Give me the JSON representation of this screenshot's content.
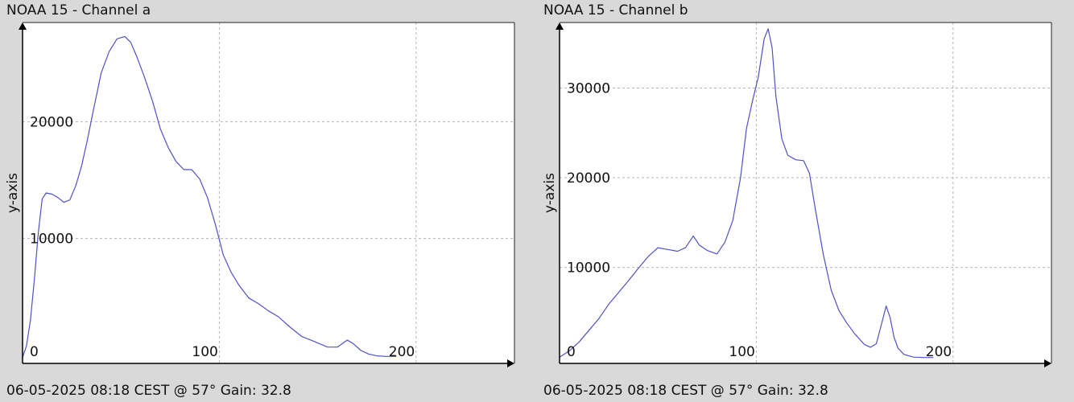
{
  "chart_data": [
    {
      "type": "line",
      "title": "NOAA 15 - Channel a",
      "footer": "06-05-2025 08:18 CEST @ 57° Gain: 32.8",
      "xlabel": "",
      "ylabel": "y-axis",
      "xlim": [
        0,
        250
      ],
      "ylim": [
        -700,
        28500
      ],
      "x_ticks": [
        0,
        100,
        200
      ],
      "x_tick_labels": [
        "0",
        "100",
        "200"
      ],
      "y_ticks": [
        10000,
        20000
      ],
      "y_tick_labels": [
        "10000",
        "20000"
      ],
      "grid": true,
      "color": "#5050c8",
      "series": [
        {
          "x": [
            0,
            2,
            4,
            6,
            8,
            10,
            12,
            15,
            18,
            21,
            24,
            27,
            30,
            33,
            36,
            40,
            44,
            48,
            52,
            55,
            58,
            62,
            66,
            70,
            74,
            78,
            82,
            86,
            90,
            94,
            98,
            102,
            106,
            110,
            115,
            120,
            125,
            130,
            136,
            142,
            148,
            155,
            160,
            165,
            168,
            172,
            176,
            180,
            185,
            190
          ],
          "y": [
            -200,
            800,
            3000,
            6500,
            10500,
            13400,
            13900,
            13800,
            13500,
            13100,
            13300,
            14500,
            16200,
            18500,
            21000,
            24200,
            26000,
            27100,
            27300,
            26800,
            25600,
            23800,
            21800,
            19400,
            17800,
            16600,
            15900,
            15900,
            15100,
            13500,
            11200,
            8600,
            7100,
            6000,
            4900,
            4400,
            3800,
            3300,
            2400,
            1600,
            1200,
            700,
            700,
            1300,
            1000,
            400,
            100,
            -50,
            -100,
            -100
          ]
        }
      ]
    },
    {
      "type": "line",
      "title": "NOAA 15 - Channel b",
      "footer": "06-05-2025 08:18 CEST @ 57° Gain: 32.8",
      "xlabel": "",
      "ylabel": "y-axis",
      "xlim": [
        0,
        250
      ],
      "ylim": [
        -700,
        37300
      ],
      "x_ticks": [
        0,
        100,
        200
      ],
      "x_tick_labels": [
        "0",
        "100",
        "200"
      ],
      "y_ticks": [
        10000,
        20000,
        30000
      ],
      "y_tick_labels": [
        "10000",
        "20000",
        "30000"
      ],
      "grid": true,
      "color": "#5050c8",
      "series": [
        {
          "x": [
            0,
            5,
            10,
            15,
            20,
            25,
            30,
            35,
            40,
            45,
            50,
            55,
            60,
            64,
            68,
            71,
            75,
            80,
            84,
            88,
            92,
            95,
            98,
            101,
            104,
            106,
            108,
            110,
            113,
            116,
            120,
            124,
            127,
            130,
            134,
            138,
            142,
            146,
            150,
            155,
            158,
            161,
            164,
            166,
            168,
            170,
            172,
            175,
            180,
            185,
            190
          ],
          "y": [
            0,
            700,
            1700,
            3000,
            4300,
            5900,
            7200,
            8500,
            9900,
            11200,
            12200,
            12000,
            11800,
            12200,
            13500,
            12500,
            11900,
            11500,
            12800,
            15200,
            20000,
            25500,
            28500,
            31200,
            35500,
            36600,
            34500,
            29000,
            24300,
            22500,
            22000,
            21900,
            20500,
            16500,
            11500,
            7500,
            5200,
            3800,
            2600,
            1400,
            1100,
            1500,
            4000,
            5700,
            4400,
            2200,
            1000,
            300,
            0,
            -50,
            -50
          ]
        }
      ]
    }
  ]
}
